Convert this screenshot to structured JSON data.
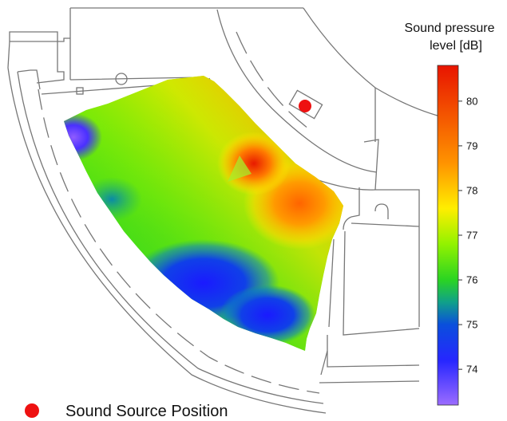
{
  "colorbar": {
    "title_line1": "Sound pressure",
    "title_line2": "level [dB]",
    "min": 73.2,
    "max": 80.8,
    "ticks": [
      "74",
      "75",
      "76",
      "77",
      "78",
      "79",
      "80"
    ],
    "tick_values": [
      74,
      75,
      76,
      77,
      78,
      79,
      80
    ],
    "stops": [
      {
        "value": 73.2,
        "color": "#9b6cff"
      },
      {
        "value": 74.2,
        "color": "#2626ff"
      },
      {
        "value": 75.0,
        "color": "#0a4fdc"
      },
      {
        "value": 75.5,
        "color": "#10a08a"
      },
      {
        "value": 76.0,
        "color": "#2ad422"
      },
      {
        "value": 76.8,
        "color": "#92f200"
      },
      {
        "value": 77.6,
        "color": "#ffee00"
      },
      {
        "value": 78.6,
        "color": "#ff9400"
      },
      {
        "value": 80.8,
        "color": "#e81400"
      }
    ]
  },
  "legend": {
    "label": "Sound Source Position",
    "marker_color": "#ee1111"
  },
  "map_colors": {
    "background": "#ffffff",
    "wall_stroke": "#777777",
    "source_color": "#ee1111"
  }
}
